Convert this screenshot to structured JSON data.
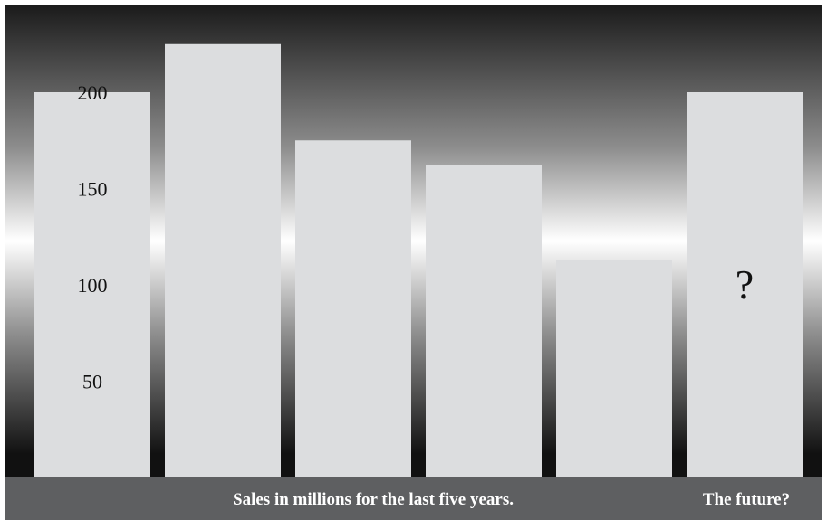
{
  "chart_data": {
    "type": "bar",
    "categories": [
      "",
      "",
      "",
      "",
      "",
      ""
    ],
    "values": [
      200,
      225,
      175,
      162,
      113,
      200
    ],
    "unknown_index": 5,
    "unknown_label": "?",
    "ylim": [
      0,
      240
    ],
    "yticks": [
      50,
      100,
      150,
      200
    ],
    "grid": false,
    "caption_main": "Sales in millions for the last five years.",
    "caption_future": "The future?",
    "colors": {
      "bar": "#dcdddf",
      "caption_band": "#5e5f61",
      "caption_text": "#ffffff",
      "background_dark": "#1a1a1a",
      "background_light": "#ffffff"
    }
  }
}
